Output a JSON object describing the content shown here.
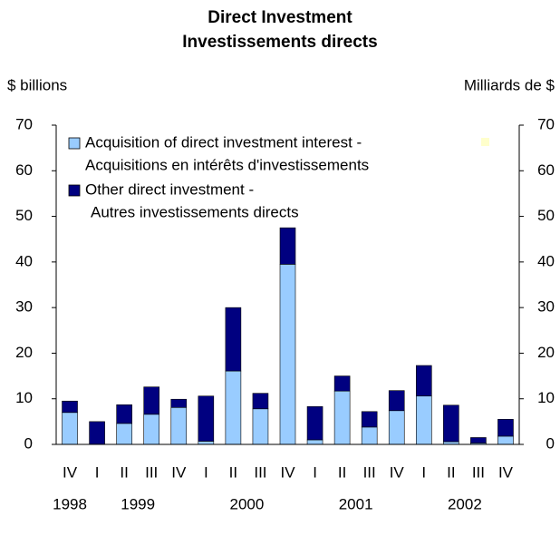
{
  "chart_data": {
    "type": "stacked_bar",
    "title": [
      "Direct Investment",
      "Investissements directs"
    ],
    "y_label": "$ billions",
    "y2_label": "Milliards de $",
    "categories": [
      "IV",
      "I",
      "II",
      "III",
      "IV",
      "I",
      "II",
      "III",
      "IV",
      "I",
      "II",
      "III",
      "IV",
      "I",
      "II",
      "III",
      "IV"
    ],
    "groups": [
      {
        "label": "1998",
        "start": 0,
        "end": 0
      },
      {
        "label": "1999",
        "start": 1,
        "end": 4
      },
      {
        "label": "2000",
        "start": 5,
        "end": 8
      },
      {
        "label": "2001",
        "start": 9,
        "end": 12
      },
      {
        "label": "2002",
        "start": 13,
        "end": 16
      }
    ],
    "series": [
      {
        "name": [
          "Acquisition of direct investment interest -",
          "Acquisitions en intérêts d'investissements"
        ],
        "color": "#99ccff",
        "values": [
          7,
          0,
          4.6,
          6.6,
          8.1,
          0.7,
          16.1,
          7.8,
          39.5,
          1,
          11.7,
          3.8,
          7.4,
          10.6,
          0.6,
          0.3,
          1.8
        ]
      },
      {
        "name": [
          "Other direct investment -",
          "Autres investissements directs"
        ],
        "color": "#000080",
        "values": [
          2.5,
          5,
          4.1,
          6,
          1.8,
          9.9,
          13.9,
          3.4,
          8,
          7.3,
          3.3,
          3.4,
          4.4,
          6.7,
          8,
          1.2,
          3.7
        ]
      }
    ],
    "ylim": [
      0,
      70
    ],
    "yticks": [
      0,
      10,
      20,
      30,
      40,
      50,
      60,
      70
    ],
    "y2lim": [
      0,
      70
    ],
    "y2ticks": [
      0,
      10,
      20,
      30,
      40,
      50,
      60,
      70
    ]
  }
}
